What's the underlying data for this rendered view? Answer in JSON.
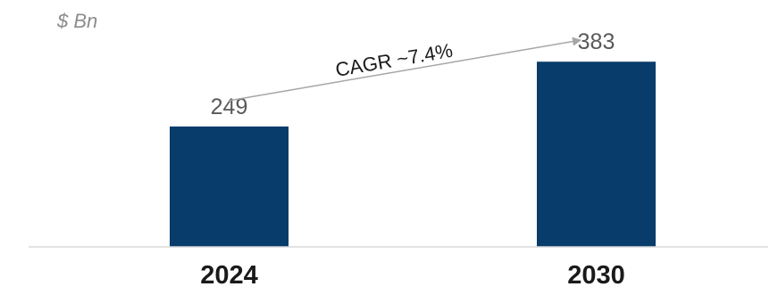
{
  "chart_data": {
    "type": "bar",
    "unit_label": "$ Bn",
    "categories": [
      "2024",
      "2030"
    ],
    "values": [
      249,
      383
    ],
    "value_labels": [
      "249",
      "383"
    ],
    "title": "",
    "xlabel": "",
    "ylabel": "",
    "ylim": [
      0,
      400
    ],
    "grid": false,
    "bar_color": "#073c6b",
    "annotation": {
      "text": "CAGR ~7.4%",
      "from_category": "2024",
      "to_category": "2030"
    }
  }
}
